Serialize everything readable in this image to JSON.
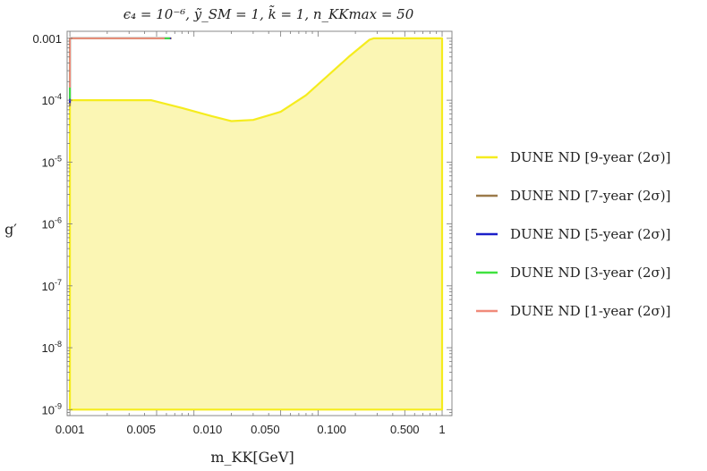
{
  "chart_data": {
    "type": "area",
    "title": "ϵ₄ = 10⁻⁶, ỹ_SM = 1, k̃ = 1, n_KKmax = 50",
    "xlabel": "m_KK[GeV]",
    "ylabel": "g′",
    "xscale": "log",
    "yscale": "log",
    "xlim": [
      0.00095,
      1.2
    ],
    "ylim": [
      8e-10,
      0.0013
    ],
    "x_ticks": [
      {
        "value": 0.001,
        "label": "0.001"
      },
      {
        "value": 0.005,
        "label": "0.005"
      },
      {
        "value": 0.01,
        "label": "0.010"
      },
      {
        "value": 0.05,
        "label": "0.050"
      },
      {
        "value": 0.1,
        "label": "0.100"
      },
      {
        "value": 0.5,
        "label": "0.500"
      },
      {
        "value": 1,
        "label": "1"
      }
    ],
    "y_ticks": [
      {
        "value": 0.001,
        "label": "0.001"
      },
      {
        "value": 0.0001,
        "base": "10",
        "exp": "-4"
      },
      {
        "value": 1e-05,
        "base": "10",
        "exp": "-5"
      },
      {
        "value": 1e-06,
        "base": "10",
        "exp": "-6"
      },
      {
        "value": 1e-07,
        "base": "10",
        "exp": "-7"
      },
      {
        "value": 1e-08,
        "base": "10",
        "exp": "-8"
      },
      {
        "value": 1e-09,
        "base": "10",
        "exp": "-9"
      }
    ],
    "legend_position": "right",
    "series": [
      {
        "name": "DUNE ND [9-year (2σ)]",
        "color": "#f5ec1e",
        "fill": "#fbf6b4",
        "points": [
          [
            0.001,
            1e-09
          ],
          [
            0.001,
            0.0001
          ],
          [
            0.00135,
            0.0001
          ],
          [
            0.0045,
            0.0001
          ],
          [
            0.008,
            7.5e-05
          ],
          [
            0.014,
            5.5e-05
          ],
          [
            0.02,
            4.6e-05
          ],
          [
            0.03,
            4.8e-05
          ],
          [
            0.05,
            6.5e-05
          ],
          [
            0.08,
            0.00012
          ],
          [
            0.12,
            0.00025
          ],
          [
            0.18,
            0.00052
          ],
          [
            0.26,
            0.00095
          ],
          [
            0.28,
            0.001
          ],
          [
            1,
            0.001
          ],
          [
            1,
            1e-09
          ]
        ]
      },
      {
        "name": "DUNE ND [7-year (2σ)]",
        "color": "#9b7a4a",
        "points": [
          [
            0.001,
            8e-05
          ],
          [
            0.001,
            0.001
          ],
          [
            0.0066,
            0.001
          ]
        ]
      },
      {
        "name": "DUNE ND [5-year (2σ)]",
        "color": "#1b1fc9",
        "points": [
          [
            0.001,
            9e-05
          ],
          [
            0.001,
            0.001
          ],
          [
            0.0065,
            0.001
          ]
        ]
      },
      {
        "name": "DUNE ND [3-year (2σ)]",
        "color": "#3fe23f",
        "points": [
          [
            0.001,
            0.000105
          ],
          [
            0.001,
            0.001
          ],
          [
            0.0064,
            0.001
          ]
        ]
      },
      {
        "name": "DUNE ND [1-year (2σ)]",
        "color": "#f08a7a",
        "points": [
          [
            0.001,
            0.00016
          ],
          [
            0.001,
            0.001
          ],
          [
            0.0058,
            0.001
          ]
        ]
      }
    ]
  }
}
